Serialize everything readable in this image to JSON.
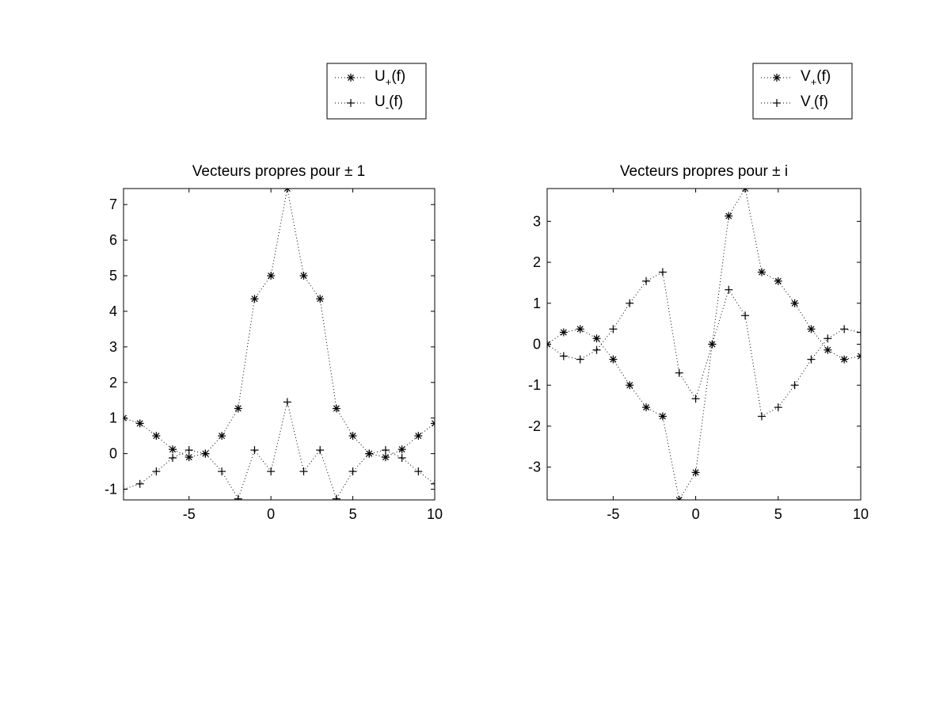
{
  "chart_data": [
    {
      "type": "line",
      "title": "Vecteurs propres pour ± 1",
      "xlabel": "",
      "ylabel": "",
      "xlim": [
        -9,
        10
      ],
      "ylim": [
        -1.3,
        7.45
      ],
      "xticks": [
        -5,
        0,
        5,
        10
      ],
      "yticks": [
        -1,
        0,
        1,
        2,
        3,
        4,
        5,
        6,
        7
      ],
      "x": [
        -9,
        -8,
        -7,
        -6,
        -5,
        -4,
        -3,
        -2,
        -1,
        0,
        1,
        2,
        3,
        4,
        5,
        6,
        7,
        8,
        9,
        10
      ],
      "grid": false,
      "legend_position": "top-right-above",
      "series": [
        {
          "name_main": "U",
          "name_sub": "+",
          "name_tail": "(f)",
          "marker": "asterisk",
          "line": "dotted",
          "values": [
            1.0,
            0.85,
            0.5,
            0.12,
            -0.1,
            0.0,
            0.5,
            1.27,
            4.35,
            5.0,
            7.45,
            5.0,
            4.35,
            1.27,
            0.5,
            0.0,
            -0.1,
            0.12,
            0.5,
            0.85
          ]
        },
        {
          "name_main": "U",
          "name_sub": "-",
          "name_tail": "(f)",
          "marker": "plus",
          "line": "dotted",
          "values": [
            -1.0,
            -0.85,
            -0.5,
            -0.12,
            0.1,
            0.0,
            -0.5,
            -1.27,
            0.1,
            -0.5,
            1.45,
            -0.5,
            0.1,
            -1.27,
            -0.5,
            0.0,
            0.1,
            -0.12,
            -0.5,
            -0.85
          ]
        }
      ]
    },
    {
      "type": "line",
      "title": "Vecteurs propres pour ± i",
      "xlabel": "",
      "ylabel": "",
      "xlim": [
        -9,
        10
      ],
      "ylim": [
        -3.8,
        3.8
      ],
      "xticks": [
        -5,
        0,
        5,
        10
      ],
      "yticks": [
        -3,
        -2,
        -1,
        0,
        1,
        2,
        3
      ],
      "x": [
        -9,
        -8,
        -7,
        -6,
        -5,
        -4,
        -3,
        -2,
        -1,
        0,
        1,
        2,
        3,
        4,
        5,
        6,
        7,
        8,
        9,
        10
      ],
      "grid": false,
      "legend_position": "top-right-above",
      "series": [
        {
          "name_main": "V",
          "name_sub": "+",
          "name_tail": "(f)",
          "marker": "asterisk",
          "line": "dotted",
          "values": [
            0.0,
            0.29,
            0.37,
            0.14,
            -0.37,
            -1.0,
            -1.54,
            -1.76,
            -3.8,
            -3.13,
            0.0,
            3.13,
            3.8,
            1.76,
            1.54,
            1.0,
            0.37,
            -0.14,
            -0.37,
            -0.29
          ]
        },
        {
          "name_main": "V",
          "name_sub": "-",
          "name_tail": "(f)",
          "marker": "plus",
          "line": "dotted",
          "values": [
            0.0,
            -0.29,
            -0.37,
            -0.14,
            0.37,
            1.0,
            1.54,
            1.76,
            -0.7,
            -1.33,
            0.0,
            1.33,
            0.7,
            -1.76,
            -1.54,
            -1.0,
            -0.37,
            0.14,
            0.37,
            0.29
          ]
        }
      ]
    }
  ]
}
